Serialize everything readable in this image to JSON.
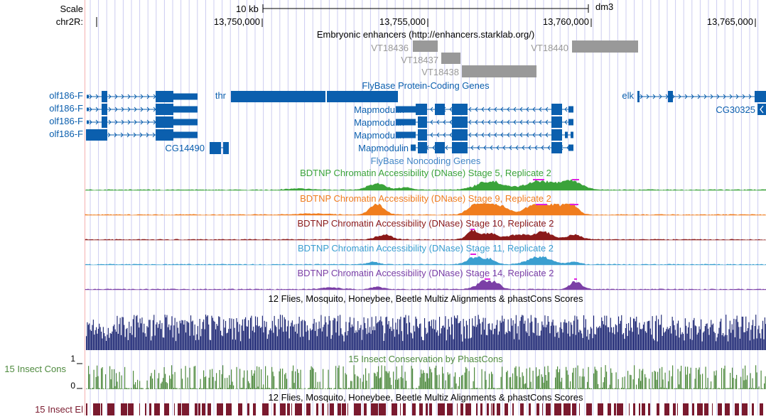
{
  "ruler": {
    "scale_label": "Scale",
    "scale_value": "10 kb",
    "assembly": "dm3",
    "chrom_label": "chr2R:",
    "positions": [
      "13,750,000",
      "13,755,000",
      "13,760,000",
      "13,765,000"
    ]
  },
  "tracks": {
    "enhancers": {
      "title": "Embryonic enhancers (http://enhancers.starklab.org/)",
      "color": "#999999",
      "items": [
        "VT18436",
        "VT18437",
        "VT18438",
        "VT18440"
      ]
    },
    "protein_genes": {
      "title": "FlyBase Protein-Coding Genes",
      "color": "#0b5fae",
      "genes": [
        "olf186-F",
        "olf186-F",
        "olf186-F",
        "olf186-F",
        "thr",
        "CG14490",
        "Mapmodulin",
        "Mapmodulin",
        "Mapmodulin",
        "Mapmodulin",
        "elk",
        "CG30325"
      ]
    },
    "noncoding_genes": {
      "title": "FlyBase Noncoding Genes",
      "color": "#4286c6"
    },
    "dnase": [
      {
        "title": "BDTNP Chromatin Accessibility (DNase) Stage 5, Replicate 2",
        "color": "#3aa33a"
      },
      {
        "title": "BDTNP Chromatin Accessibility (DNase) Stage 9, Replicate 2",
        "color": "#f07d1e"
      },
      {
        "title": "BDTNP Chromatin Accessibility (DNase) Stage 10, Replicate 2",
        "color": "#8b1a1a"
      },
      {
        "title": "BDTNP Chromatin Accessibility (DNase) Stage 11, Replicate 2",
        "color": "#3a9fd0"
      },
      {
        "title": "BDTNP Chromatin Accessibility (DNase) Stage 14, Replicate 2",
        "color": "#7b3fa6"
      }
    ],
    "multiz": {
      "title": "12 Flies, Mosquito, Honeybee, Beetle Multiz Alignments & phastCons Scores",
      "color": "#141e6e"
    },
    "cons": {
      "title": "15 Insect Conservation by PhastCons",
      "side_label": "15 Insect Cons",
      "axis_max": "1",
      "axis_min": "0",
      "color": "#4e8a3e"
    },
    "elements": {
      "title": "12 Flies, Mosquito, Honeybee, Beetle Multiz Alignments & phastCons Scores",
      "side_label": "15 Insect El",
      "color": "#7a1a2e"
    }
  },
  "colors": {
    "grid": "#ccccf0",
    "highlight": "#e020e0",
    "left_margin_line": "#f4b0b0"
  }
}
